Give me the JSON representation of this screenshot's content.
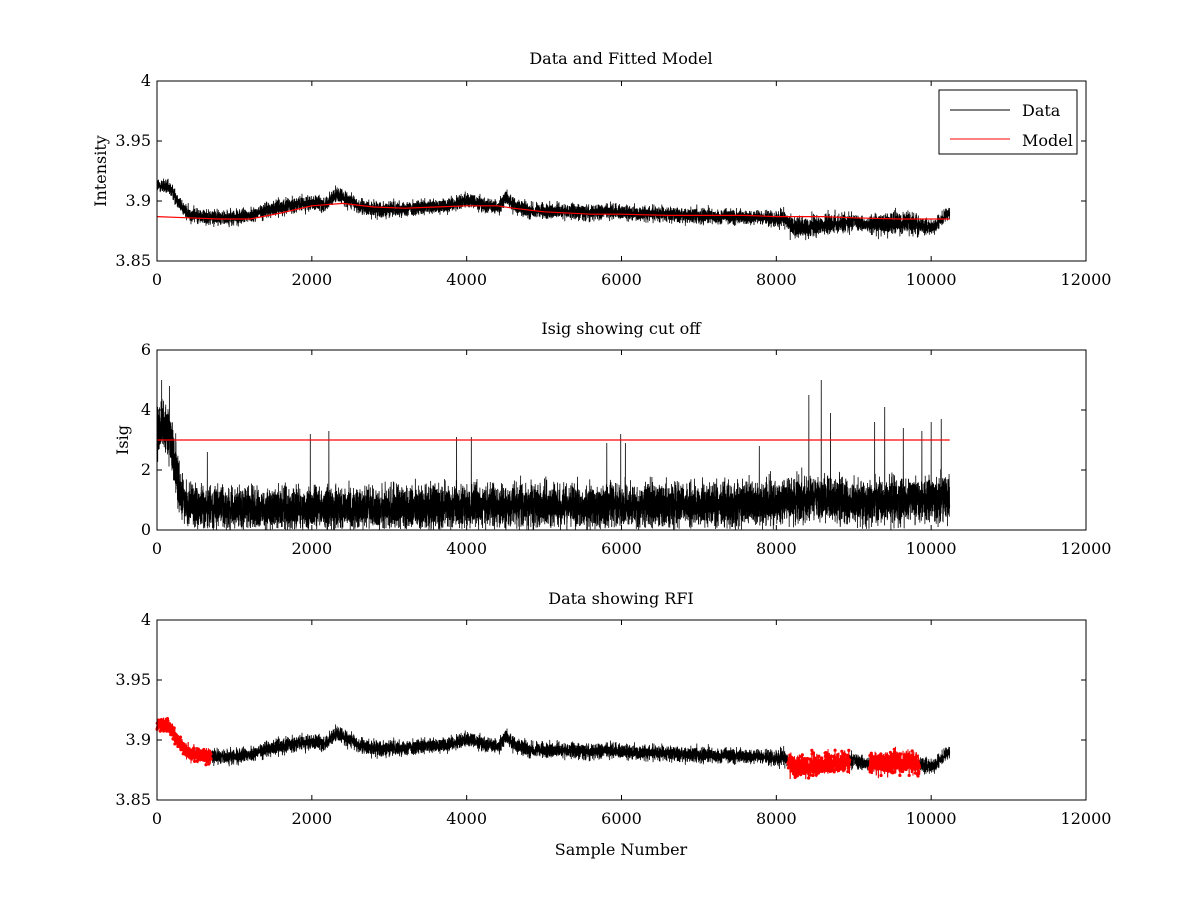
{
  "chart_data": [
    {
      "type": "line",
      "title": "Data and Fitted Model",
      "xlabel": "",
      "ylabel": "Intensity",
      "xlim": [
        0,
        12000
      ],
      "ylim": [
        3.85,
        4
      ],
      "xticks": [
        0,
        2000,
        4000,
        6000,
        8000,
        10000,
        12000
      ],
      "yticks": [
        3.85,
        3.9,
        3.95,
        4
      ],
      "xtick_labels": [
        "0",
        "2000",
        "4000",
        "6000",
        "8000",
        "10000",
        "12000"
      ],
      "ytick_labels": [
        "3.85",
        "3.9",
        "3.95",
        "4"
      ],
      "grid": false,
      "legend": {
        "placement": "top-right",
        "entries": [
          "Data",
          "Model"
        ]
      },
      "series": [
        {
          "name": "Data",
          "color": "#000000",
          "style": "line",
          "n_samples": 10240,
          "x": [
            0,
            100,
            200,
            300,
            400,
            600,
            800,
            1000,
            1200,
            1400,
            1600,
            1800,
            2000,
            2200,
            2300,
            2400,
            2600,
            2800,
            3000,
            3200,
            3400,
            3600,
            3800,
            4000,
            4200,
            4400,
            4500,
            4600,
            4800,
            5000,
            5200,
            5400,
            5600,
            5800,
            6000,
            6200,
            6400,
            6600,
            6800,
            7000,
            7200,
            7400,
            7600,
            7800,
            8000,
            8100,
            8200,
            8400,
            8600,
            8800,
            9000,
            9200,
            9400,
            9600,
            9800,
            10000,
            10240
          ],
          "y": [
            3.913,
            3.912,
            3.908,
            3.897,
            3.889,
            3.887,
            3.886,
            3.886,
            3.888,
            3.892,
            3.895,
            3.897,
            3.898,
            3.897,
            3.906,
            3.903,
            3.896,
            3.893,
            3.893,
            3.894,
            3.894,
            3.895,
            3.897,
            3.901,
            3.897,
            3.894,
            3.903,
            3.897,
            3.892,
            3.891,
            3.892,
            3.891,
            3.89,
            3.891,
            3.891,
            3.889,
            3.89,
            3.889,
            3.888,
            3.888,
            3.887,
            3.887,
            3.886,
            3.886,
            3.885,
            3.886,
            3.878,
            3.878,
            3.88,
            3.881,
            3.883,
            3.88,
            3.881,
            3.882,
            3.881,
            3.877,
            3.891
          ],
          "noise_amplitude": 0.006
        },
        {
          "name": "Model",
          "color": "#ff0000",
          "style": "line",
          "x": [
            0,
            400,
            800,
            1200,
            1600,
            2000,
            2400,
            2800,
            3200,
            3600,
            4000,
            4400,
            4600,
            5000,
            5600,
            6000,
            6600,
            7000,
            7600,
            8000,
            8600,
            9000,
            9600,
            10240
          ],
          "y": [
            3.887,
            3.886,
            3.885,
            3.885,
            3.89,
            3.896,
            3.898,
            3.895,
            3.894,
            3.895,
            3.896,
            3.896,
            3.894,
            3.891,
            3.889,
            3.889,
            3.888,
            3.888,
            3.888,
            3.887,
            3.887,
            3.886,
            3.885,
            3.885
          ]
        }
      ]
    },
    {
      "type": "line",
      "title": "Isig showing cut off",
      "xlabel": "",
      "ylabel": "Isig",
      "xlim": [
        0,
        12000
      ],
      "ylim": [
        0,
        6
      ],
      "xticks": [
        0,
        2000,
        4000,
        6000,
        8000,
        10000,
        12000
      ],
      "yticks": [
        0,
        2,
        4,
        6
      ],
      "xtick_labels": [
        "0",
        "2000",
        "4000",
        "6000",
        "8000",
        "10000",
        "12000"
      ],
      "ytick_labels": [
        "0",
        "2",
        "4",
        "6"
      ],
      "grid": false,
      "series": [
        {
          "color": "#000000",
          "style": "line",
          "n_samples": 10240,
          "x": [
            0,
            100,
            200,
            300,
            400,
            1000,
            2000,
            3000,
            4000,
            5000,
            6000,
            7000,
            8000,
            8500,
            9000,
            9500,
            10000,
            10240
          ],
          "y": [
            3.2,
            3.4,
            2.8,
            1.2,
            0.8,
            0.7,
            0.7,
            0.7,
            0.8,
            0.8,
            0.8,
            0.8,
            0.9,
            1.1,
            0.9,
            1.0,
            1.0,
            1.1
          ],
          "noise_amplitude": 0.7,
          "spikes": [
            {
              "x": 60,
              "y": 5.0
            },
            {
              "x": 160,
              "y": 4.8
            },
            {
              "x": 650,
              "y": 2.6
            },
            {
              "x": 1980,
              "y": 3.2
            },
            {
              "x": 2220,
              "y": 3.3
            },
            {
              "x": 3870,
              "y": 3.1
            },
            {
              "x": 4060,
              "y": 3.1
            },
            {
              "x": 5810,
              "y": 2.9
            },
            {
              "x": 5990,
              "y": 3.2
            },
            {
              "x": 6050,
              "y": 2.9
            },
            {
              "x": 7780,
              "y": 2.8
            },
            {
              "x": 8420,
              "y": 4.5
            },
            {
              "x": 8580,
              "y": 5.0
            },
            {
              "x": 8700,
              "y": 3.9
            },
            {
              "x": 9270,
              "y": 3.6
            },
            {
              "x": 9400,
              "y": 4.1
            },
            {
              "x": 9640,
              "y": 3.4
            },
            {
              "x": 9880,
              "y": 3.3
            },
            {
              "x": 10000,
              "y": 3.6
            },
            {
              "x": 10130,
              "y": 3.7
            }
          ]
        },
        {
          "color": "#ff0000",
          "style": "line",
          "x": [
            0,
            10240
          ],
          "y": [
            3,
            3
          ]
        }
      ]
    },
    {
      "type": "line",
      "title": "Data showing RFI",
      "xlabel": "Sample Number",
      "ylabel": "",
      "xlim": [
        0,
        12000
      ],
      "ylim": [
        3.85,
        4
      ],
      "xticks": [
        0,
        2000,
        4000,
        6000,
        8000,
        10000,
        12000
      ],
      "yticks": [
        3.85,
        3.9,
        3.95,
        4
      ],
      "xtick_labels": [
        "0",
        "2000",
        "4000",
        "6000",
        "8000",
        "10000",
        "12000"
      ],
      "ytick_labels": [
        "3.85",
        "3.9",
        "3.95",
        "4"
      ],
      "grid": false,
      "series": [
        {
          "color": "#000000",
          "style": "line",
          "same_data_as": "Data"
        },
        {
          "color": "#ff0000",
          "style": "markers",
          "flagged_ranges": [
            [
              0,
              700
            ],
            [
              8150,
              8950
            ],
            [
              9200,
              9850
            ]
          ]
        }
      ]
    }
  ]
}
